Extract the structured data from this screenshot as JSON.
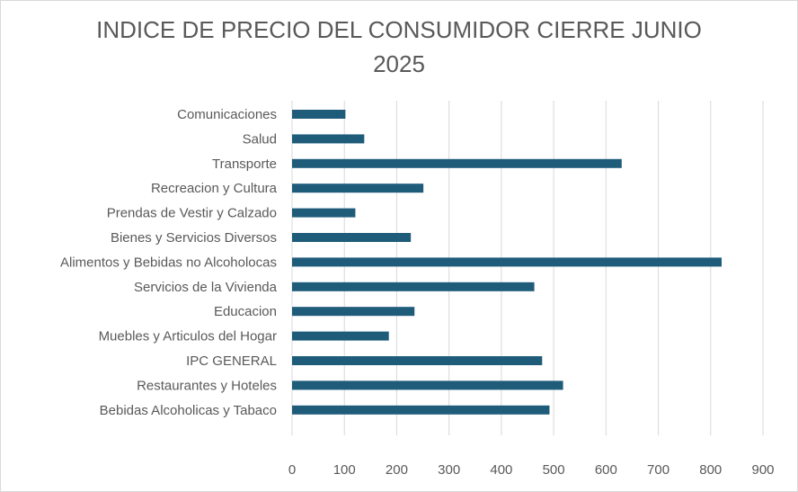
{
  "chart_data": {
    "type": "bar",
    "orientation": "horizontal",
    "title_lines": [
      "INDICE DE PRECIO DEL CONSUMIDOR CIERRE JUNIO",
      "2025"
    ],
    "categories": [
      "Comunicaciones",
      "Salud",
      "Transporte",
      "Recreacion y Cultura",
      "Prendas de Vestir y Calzado",
      "Bienes y Servicios Diversos",
      "Alimentos y Bebidas no Alcoholocas",
      "Servicios de la Vivienda",
      "Educacion",
      "Muebles y Articulos del Hogar",
      "IPC GENERAL",
      "Restaurantes y Hoteles",
      "Bebidas Alcoholicas y Tabaco"
    ],
    "values": [
      102,
      138,
      630,
      251,
      121,
      227,
      821,
      463,
      234,
      185,
      478,
      518,
      492
    ],
    "xlim": [
      0,
      900
    ],
    "xticks": [
      0,
      100,
      200,
      300,
      400,
      500,
      600,
      700,
      800,
      900
    ],
    "grid": true,
    "legend": "none",
    "bar_color": "#1f5c7a"
  }
}
